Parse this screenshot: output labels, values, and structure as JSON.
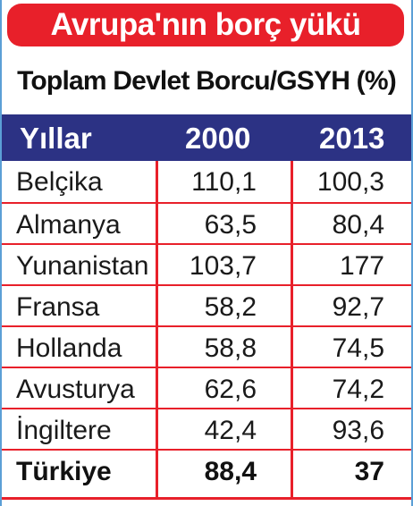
{
  "title": "Avrupa'nın borç yükü",
  "subtitle": "Toplam Devlet Borcu/GSYH (%)",
  "accent_color": "#e8202a",
  "header_color": "#2c3284",
  "table": {
    "headers": [
      "Yıllar",
      "2000",
      "2013"
    ],
    "rows": [
      {
        "country": "Belçika",
        "y2000": "110,1",
        "y2013": "100,3"
      },
      {
        "country": "Almanya",
        "y2000": "63,5",
        "y2013": "80,4"
      },
      {
        "country": "Yunanistan",
        "y2000": "103,7",
        "y2013": "177"
      },
      {
        "country": "Fransa",
        "y2000": "58,2",
        "y2013": "92,7"
      },
      {
        "country": "Hollanda",
        "y2000": "58,8",
        "y2013": "74,5"
      },
      {
        "country": "Avusturya",
        "y2000": "62,6",
        "y2013": "74,2"
      },
      {
        "country": "İngiltere",
        "y2000": "42,4",
        "y2013": "93,6"
      },
      {
        "country": "Türkiye",
        "y2000": "88,4",
        "y2013": "37"
      }
    ]
  }
}
